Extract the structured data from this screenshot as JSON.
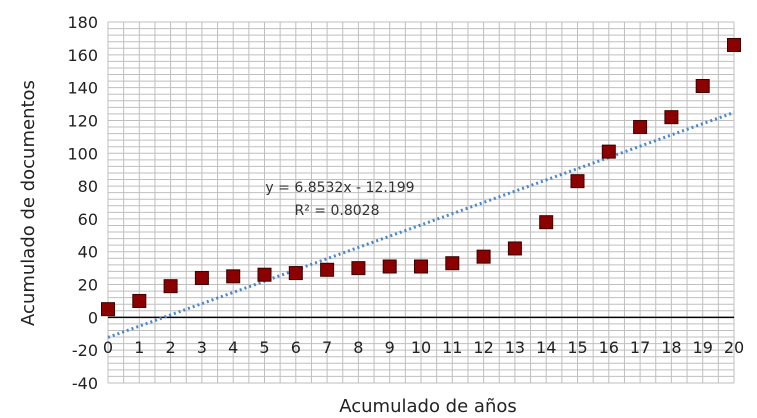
{
  "chart_data": {
    "type": "scatter",
    "title": "",
    "xlabel": "Acumulado de años",
    "ylabel": "Acumulado de documentos",
    "x": [
      0,
      1,
      2,
      3,
      4,
      5,
      6,
      7,
      8,
      9,
      10,
      11,
      12,
      13,
      14,
      15,
      16,
      17,
      18,
      19,
      20
    ],
    "series": [
      {
        "values": [
          5,
          10,
          19,
          24,
          25,
          26,
          27,
          29,
          30,
          31,
          31,
          33,
          37,
          42,
          58,
          83,
          101,
          116,
          122,
          141,
          166
        ]
      }
    ],
    "trendline": {
      "type": "linear",
      "slope": 6.8532,
      "intercept": -12.199,
      "equation": "y = 6.8532x - 12.199",
      "r2_label": "R² = 0.8028"
    },
    "xlim": [
      0,
      20
    ],
    "ylim": [
      -40,
      180
    ],
    "xticks": [
      "0",
      "1",
      "2",
      "3",
      "4",
      "5",
      "6",
      "7",
      "8",
      "9",
      "10",
      "11",
      "12",
      "13",
      "14",
      "15",
      "16",
      "17",
      "18",
      "19",
      "20"
    ],
    "yticks": [
      "-40",
      "-20",
      "0",
      "20",
      "40",
      "60",
      "80",
      "100",
      "120",
      "140",
      "160",
      "180"
    ],
    "grid": true,
    "legend": "none",
    "colors": {
      "marker": "#8b0000",
      "trendline": "#4a86c8",
      "grid": "#bfbfbf",
      "axis": "#000000"
    }
  }
}
